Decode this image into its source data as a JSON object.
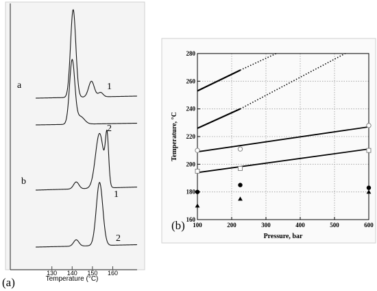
{
  "chart_data": [
    {
      "panel": "(a)",
      "type": "line",
      "xlabel": "Temperature (°C)",
      "xticks": [
        130,
        140,
        150,
        160
      ],
      "xlim": [
        122,
        172
      ],
      "group_labels": [
        "a",
        "b"
      ],
      "series": [
        {
          "group": "a",
          "name": "1",
          "peaks": [
            {
              "center": 140.5,
              "height": 1.0,
              "width": 1.3
            },
            {
              "center": 149.5,
              "height": 0.18,
              "width": 1.4
            },
            {
              "center": 154.0,
              "height": 0.05,
              "width": 1.2
            }
          ]
        },
        {
          "group": "a",
          "name": "2",
          "peaks": [
            {
              "center": 140.0,
              "height": 1.0,
              "width": 1.3
            },
            {
              "center": 144.0,
              "height": 0.12,
              "width": 2.0
            }
          ]
        },
        {
          "group": "b",
          "name": "1",
          "peaks": [
            {
              "center": 142.0,
              "height": 0.12,
              "width": 1.3
            },
            {
              "center": 153.5,
              "height": 0.95,
              "width": 2.0
            },
            {
              "center": 157.2,
              "height": 0.82,
              "width": 0.8
            }
          ]
        },
        {
          "group": "b",
          "name": "2",
          "peaks": [
            {
              "center": 142.0,
              "height": 0.1,
              "width": 1.3
            },
            {
              "center": 153.5,
              "height": 1.0,
              "width": 1.6
            }
          ]
        }
      ]
    },
    {
      "panel": "(b)",
      "type": "scatter",
      "xlabel": "Pressure, bar",
      "ylabel": "Temperature, °C",
      "xlim": [
        100,
        600
      ],
      "ylim": [
        160,
        280
      ],
      "xticks": [
        100,
        200,
        300,
        400,
        500,
        600
      ],
      "yticks": [
        160,
        180,
        200,
        220,
        240,
        260,
        280
      ],
      "grid": true,
      "lines": [
        {
          "style": "solid",
          "points": [
            [
              100,
              253
            ],
            [
              225,
              268
            ]
          ]
        },
        {
          "style": "dotted",
          "points": [
            [
              225,
              268
            ],
            [
              400,
              288
            ]
          ]
        },
        {
          "style": "solid",
          "points": [
            [
              100,
              226
            ],
            [
              225,
              240
            ]
          ]
        },
        {
          "style": "dotted",
          "points": [
            [
              225,
              240
            ],
            [
              600,
              289
            ]
          ]
        },
        {
          "style": "solid",
          "points": [
            [
              100,
              209
            ],
            [
              600,
              227
            ]
          ]
        },
        {
          "style": "solid",
          "points": [
            [
              100,
              194
            ],
            [
              600,
              211
            ]
          ]
        }
      ],
      "markers": [
        {
          "shape": "open-circle",
          "points": [
            [
              100,
              210
            ],
            [
              225,
              211
            ],
            [
              600,
              228
            ]
          ]
        },
        {
          "shape": "open-square",
          "points": [
            [
              100,
              195
            ],
            [
              225,
              197
            ],
            [
              600,
              210
            ]
          ]
        },
        {
          "shape": "filled-circle",
          "points": [
            [
              100,
              180
            ],
            [
              225,
              185
            ],
            [
              600,
              183
            ]
          ]
        },
        {
          "shape": "filled-triangle",
          "points": [
            [
              100,
              170
            ],
            [
              225,
              175
            ],
            [
              600,
              180
            ]
          ]
        }
      ]
    }
  ]
}
